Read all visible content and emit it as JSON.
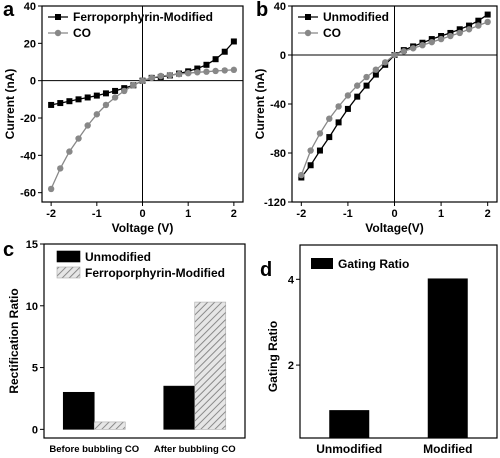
{
  "chart_data": [
    {
      "panel": "a",
      "type": "line",
      "xlabel": "Voltage (V)",
      "ylabel": "Current (nA)",
      "xlim": [
        -2.2,
        2.2
      ],
      "ylim": [
        -65,
        40
      ],
      "xticks": [
        -2,
        -1,
        0,
        1,
        2
      ],
      "yticks": [
        -60,
        -40,
        -20,
        0,
        20,
        40
      ],
      "legend_position": "top-left",
      "series": [
        {
          "name": "Ferroporphyrin-Modified",
          "marker": "square",
          "color": "#000000",
          "x": [
            -2.0,
            -1.8,
            -1.6,
            -1.4,
            -1.2,
            -1.0,
            -0.8,
            -0.6,
            -0.4,
            -0.2,
            0.0,
            0.2,
            0.4,
            0.6,
            0.8,
            1.0,
            1.2,
            1.4,
            1.6,
            1.8,
            2.0
          ],
          "y": [
            -13.0,
            -12.0,
            -11.0,
            -10.0,
            -9.0,
            -8.0,
            -6.8,
            -5.5,
            -4.0,
            -2.5,
            0.0,
            1.5,
            2.0,
            2.8,
            3.8,
            5.0,
            6.5,
            8.5,
            11.5,
            15.5,
            21.0
          ]
        },
        {
          "name": "CO",
          "marker": "circle",
          "color": "#888888",
          "x": [
            -2.0,
            -1.8,
            -1.6,
            -1.4,
            -1.2,
            -1.0,
            -0.8,
            -0.6,
            -0.4,
            -0.2,
            0.0,
            0.2,
            0.4,
            0.6,
            0.8,
            1.0,
            1.2,
            1.4,
            1.6,
            1.8,
            2.0
          ],
          "y": [
            -58.0,
            -47.0,
            -38.0,
            -31.0,
            -24.0,
            -18.0,
            -13.0,
            -9.0,
            -5.5,
            -2.5,
            0.0,
            1.5,
            2.5,
            3.0,
            3.5,
            4.0,
            4.5,
            4.8,
            5.2,
            5.5,
            5.8
          ]
        }
      ]
    },
    {
      "panel": "b",
      "type": "line",
      "xlabel": "Voltage(V)",
      "ylabel": "Current (nA)",
      "xlim": [
        -2.2,
        2.2
      ],
      "ylim": [
        -120,
        40
      ],
      "xticks": [
        -2,
        -1,
        0,
        1,
        2
      ],
      "yticks": [
        -120,
        -80,
        -40,
        0,
        40
      ],
      "legend_position": "top-left",
      "series": [
        {
          "name": "Unmodified",
          "marker": "square",
          "color": "#000000",
          "x": [
            -2.0,
            -1.8,
            -1.6,
            -1.4,
            -1.2,
            -1.0,
            -0.8,
            -0.6,
            -0.4,
            -0.2,
            0.0,
            0.2,
            0.4,
            0.6,
            0.8,
            1.0,
            1.2,
            1.4,
            1.6,
            1.8,
            2.0
          ],
          "y": [
            -100.0,
            -90.0,
            -78.0,
            -67.0,
            -55.0,
            -44.0,
            -34.0,
            -25.0,
            -16.0,
            -8.0,
            0.0,
            4.0,
            7.0,
            10.0,
            13.0,
            15.5,
            18.0,
            21.0,
            24.0,
            28.0,
            33.0
          ]
        },
        {
          "name": "CO",
          "marker": "circle",
          "color": "#888888",
          "x": [
            -2.0,
            -1.8,
            -1.6,
            -1.4,
            -1.2,
            -1.0,
            -0.8,
            -0.6,
            -0.4,
            -0.2,
            0.0,
            0.2,
            0.4,
            0.6,
            0.8,
            1.0,
            1.2,
            1.4,
            1.6,
            1.8,
            2.0
          ],
          "y": [
            -98.0,
            -78.0,
            -64.0,
            -52.0,
            -42.0,
            -33.0,
            -25.0,
            -18.0,
            -12.0,
            -6.0,
            0.0,
            3.0,
            5.5,
            8.0,
            10.5,
            13.0,
            15.5,
            18.0,
            21.0,
            24.0,
            27.0
          ]
        }
      ]
    },
    {
      "panel": "c",
      "type": "bar",
      "xlabel": "",
      "ylabel": "Rectification Ratio",
      "ylim": [
        -0.7,
        15
      ],
      "yticks": [
        0,
        5,
        10,
        15
      ],
      "categories": [
        "Before bubbling CO",
        "After bubbling CO"
      ],
      "legend_position": "top-left",
      "series": [
        {
          "name": "Unmodified",
          "fill": "solid",
          "color": "#000000",
          "values": [
            3.0,
            3.5
          ]
        },
        {
          "name": "Ferroporphyrin-Modified",
          "fill": "hatched",
          "color": "#999999",
          "values": [
            0.6,
            10.3
          ]
        }
      ]
    },
    {
      "panel": "d",
      "type": "bar",
      "xlabel": "",
      "ylabel": "Gating Ratio",
      "ylim": [
        0.3,
        4.8
      ],
      "yticks": [
        2,
        4
      ],
      "categories": [
        "Unmodified",
        "Modified"
      ],
      "legend_position": "top-left",
      "series": [
        {
          "name": "Gating Ratio",
          "fill": "solid",
          "color": "#000000",
          "values": [
            0.95,
            4.02
          ]
        }
      ]
    }
  ]
}
